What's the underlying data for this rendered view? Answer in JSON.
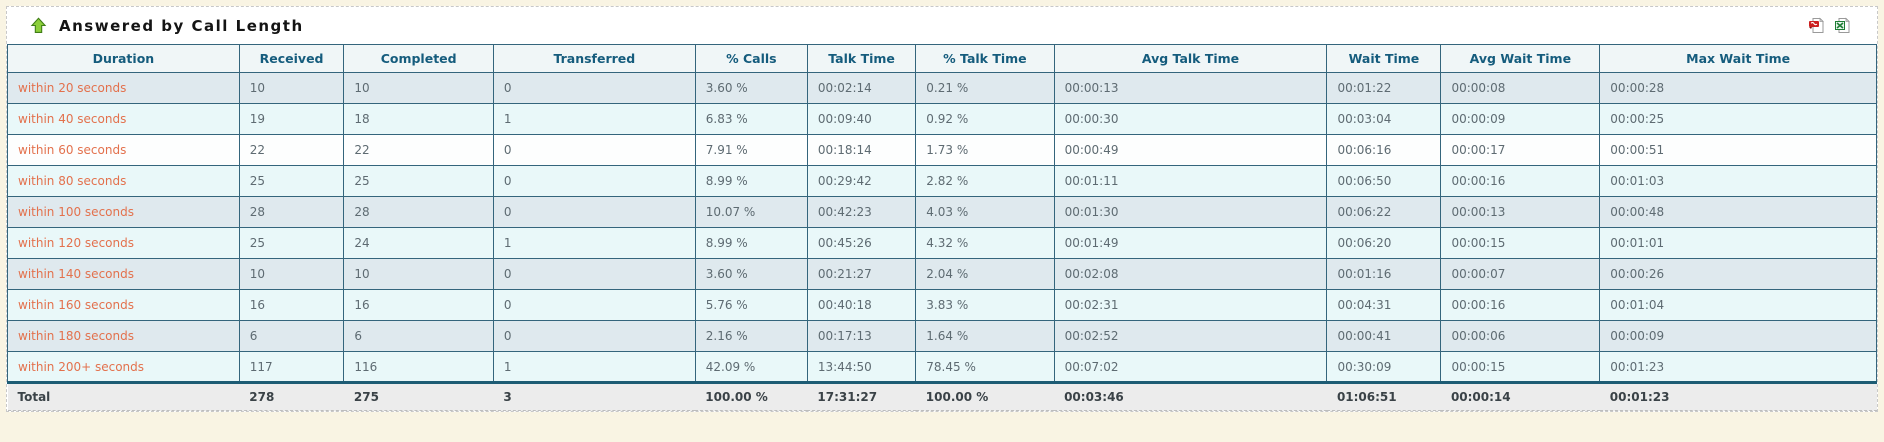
{
  "panel": {
    "title": "Answered by Call Length",
    "icons": [
      {
        "name": "collapse-panel-icon",
        "glyph": "green-up-arrow"
      },
      {
        "name": "export-pdf-icon",
        "glyph": "pdf-file"
      },
      {
        "name": "export-excel-icon",
        "glyph": "excel-file"
      }
    ]
  },
  "table": {
    "columns": [
      "Duration",
      "Received",
      "Completed",
      "Transferred",
      "% Calls",
      "Talk Time",
      "% Talk Time",
      "Avg Talk Time",
      "Wait Time",
      "Avg Wait Time",
      "Max Wait Time"
    ],
    "rows": [
      [
        "within 20 seconds",
        "10",
        "10",
        "0",
        "3.60 %",
        "00:02:14",
        "0.21 %",
        "00:00:13",
        "00:01:22",
        "00:00:08",
        "00:00:28"
      ],
      [
        "within 40 seconds",
        "19",
        "18",
        "1",
        "6.83 %",
        "00:09:40",
        "0.92 %",
        "00:00:30",
        "00:03:04",
        "00:00:09",
        "00:00:25"
      ],
      [
        "within 60 seconds",
        "22",
        "22",
        "0",
        "7.91 %",
        "00:18:14",
        "1.73 %",
        "00:00:49",
        "00:06:16",
        "00:00:17",
        "00:00:51"
      ],
      [
        "within 80 seconds",
        "25",
        "25",
        "0",
        "8.99 %",
        "00:29:42",
        "2.82 %",
        "00:01:11",
        "00:06:50",
        "00:00:16",
        "00:01:03"
      ],
      [
        "within 100 seconds",
        "28",
        "28",
        "0",
        "10.07 %",
        "00:42:23",
        "4.03 %",
        "00:01:30",
        "00:06:22",
        "00:00:13",
        "00:00:48"
      ],
      [
        "within 120 seconds",
        "25",
        "24",
        "1",
        "8.99 %",
        "00:45:26",
        "4.32 %",
        "00:01:49",
        "00:06:20",
        "00:00:15",
        "00:01:01"
      ],
      [
        "within 140 seconds",
        "10",
        "10",
        "0",
        "3.60 %",
        "00:21:27",
        "2.04 %",
        "00:02:08",
        "00:01:16",
        "00:00:07",
        "00:00:26"
      ],
      [
        "within 160 seconds",
        "16",
        "16",
        "0",
        "5.76 %",
        "00:40:18",
        "3.83 %",
        "00:02:31",
        "00:04:31",
        "00:00:16",
        "00:01:04"
      ],
      [
        "within 180 seconds",
        "6",
        "6",
        "0",
        "2.16 %",
        "00:17:13",
        "1.64 %",
        "00:02:52",
        "00:00:41",
        "00:00:06",
        "00:00:09"
      ],
      [
        "within 200+ seconds",
        "117",
        "116",
        "1",
        "42.09 %",
        "13:44:50",
        "78.45 %",
        "00:07:02",
        "00:30:09",
        "00:00:15",
        "00:01:23"
      ]
    ],
    "total": [
      "Total",
      "278",
      "275",
      "3",
      "100.00 %",
      "17:31:27",
      "100.00 %",
      "00:03:46",
      "01:06:51",
      "00:00:14",
      "00:01:23"
    ]
  },
  "colors": {
    "page_bg": "#f9f4e3",
    "panel_bg": "#ffffff",
    "dashed_border": "#c8c8c8",
    "grid_border": "#34657c",
    "header_bg": "#f0f6f7",
    "header_text": "#155c7d",
    "duration_text": "#e3714d",
    "cell_text": "#5e6b72",
    "row_odd_bg": "#dfe9ee",
    "row_even_bg": "#e9f8f9",
    "total_row_bg": "#ececec",
    "arrow_green": "#8ccf3a",
    "pdf_red": "#cc1f1f",
    "excel_green": "#1e7d34"
  }
}
